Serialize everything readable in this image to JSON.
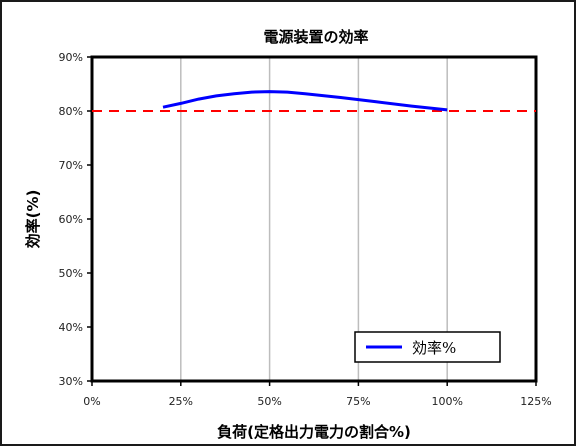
{
  "chart_data": {
    "type": "line",
    "title": "電源装置の効率",
    "xlabel": "負荷(定格出力電力の割合%)",
    "ylabel": "効率(%)",
    "xlim": [
      0,
      125
    ],
    "ylim": [
      30,
      90
    ],
    "xticks": [
      0,
      25,
      50,
      75,
      100,
      125
    ],
    "yticks": [
      30,
      40,
      50,
      60,
      70,
      80,
      90
    ],
    "xtick_labels": [
      "0%",
      "25%",
      "50%",
      "75%",
      "100%",
      "125%"
    ],
    "ytick_labels": [
      "30%",
      "40%",
      "50%",
      "60%",
      "70%",
      "80%",
      "90%"
    ],
    "grid": "vertical",
    "legend_position": "bottom-right",
    "series": [
      {
        "name": "効率%",
        "color": "#0000ff",
        "x": [
          20,
          25,
          30,
          35,
          40,
          45,
          50,
          55,
          60,
          70,
          80,
          90,
          100
        ],
        "y": [
          80.7,
          81.4,
          82.2,
          82.8,
          83.2,
          83.5,
          83.6,
          83.5,
          83.2,
          82.5,
          81.7,
          80.9,
          80.2
        ]
      }
    ],
    "reference_line": {
      "y": 80,
      "color": "#ff0000",
      "style": "dashed"
    }
  }
}
